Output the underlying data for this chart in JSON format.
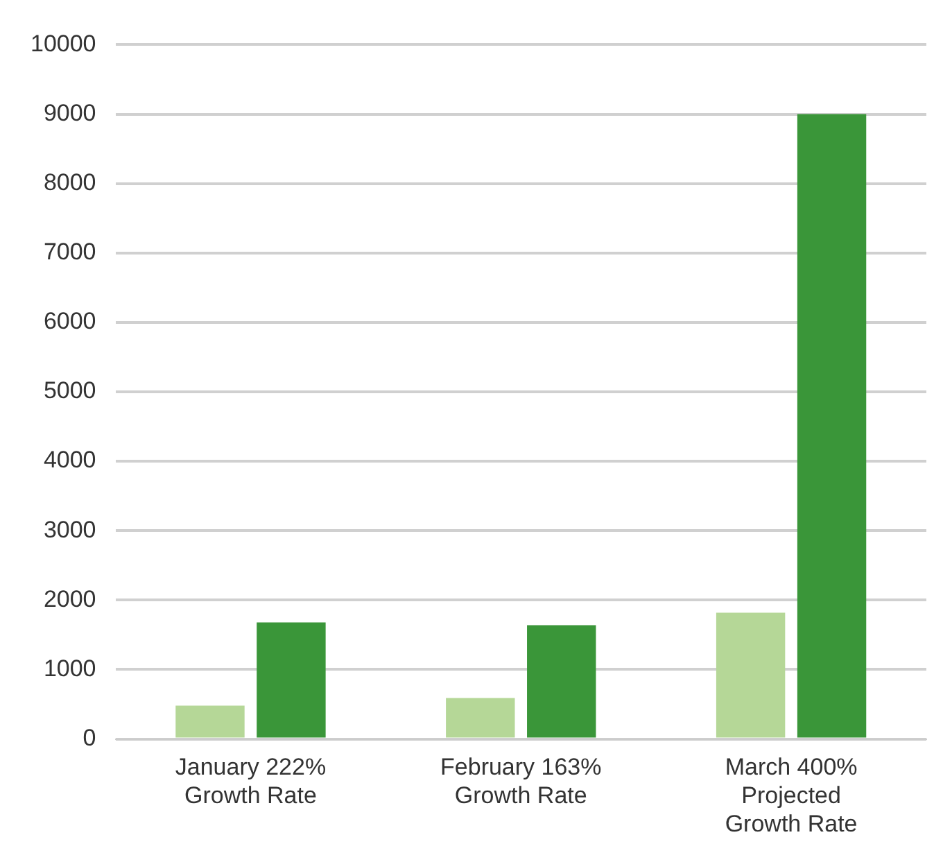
{
  "chart_data": {
    "type": "bar",
    "categories": [
      "January 222% Growth Rate",
      "February 163% Growth Rate",
      "March 400% Projected Growth Rate"
    ],
    "series": [
      {
        "color": "#b5d797",
        "values": [
          480,
          590,
          1820
        ]
      },
      {
        "color": "#3a9639",
        "values": [
          1680,
          1640,
          9000
        ]
      }
    ],
    "ylim": [
      0,
      10000
    ],
    "yticks": [
      0,
      1000,
      2000,
      3000,
      4000,
      5000,
      6000,
      7000,
      8000,
      9000,
      10000
    ],
    "grid": "y",
    "legend": false
  }
}
